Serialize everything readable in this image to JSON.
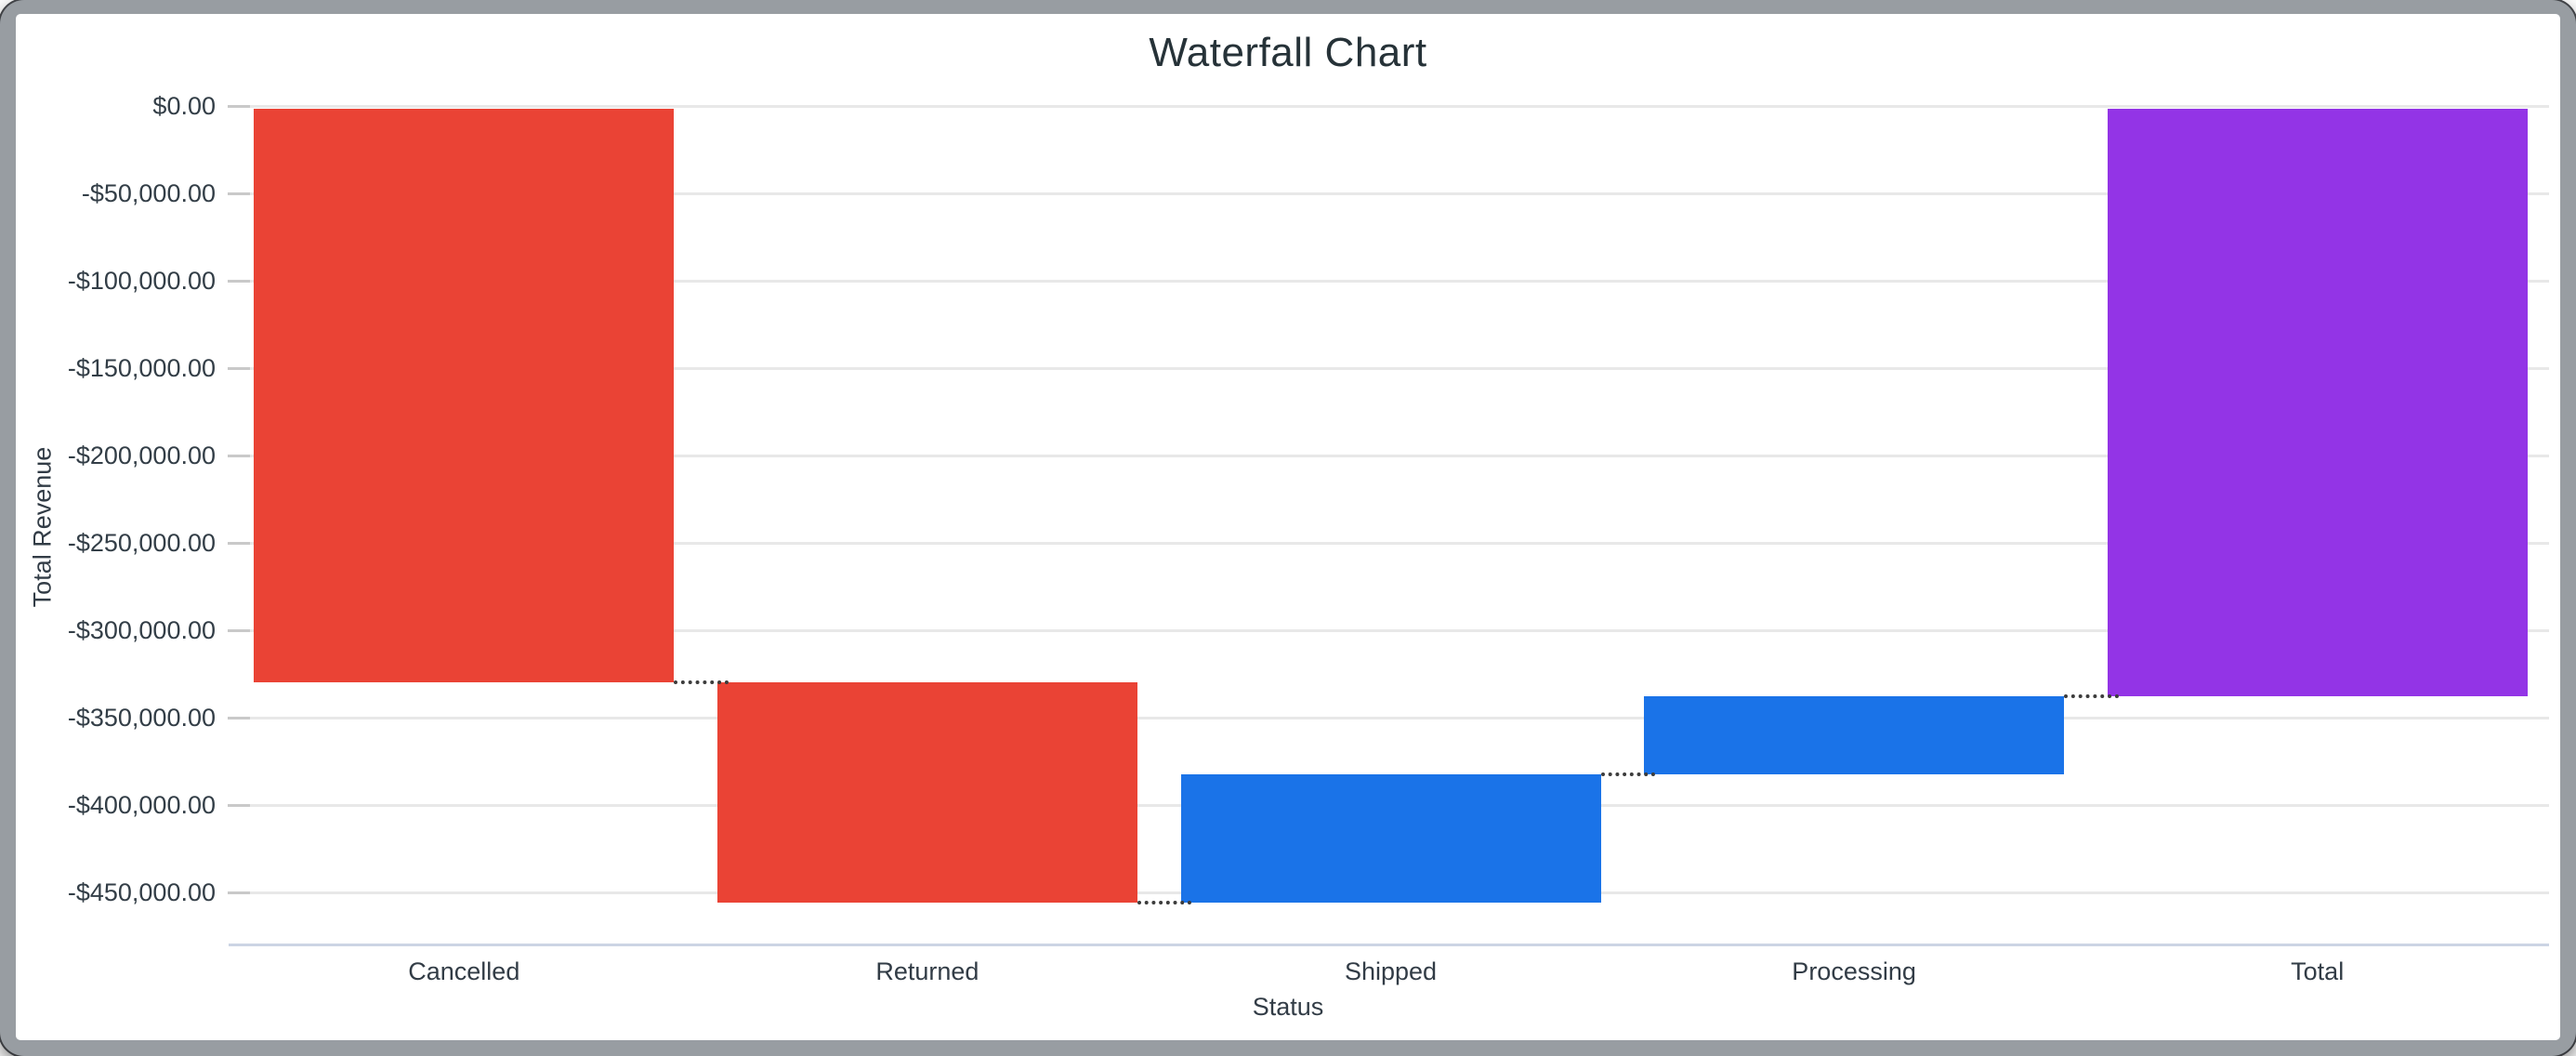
{
  "chart_data": {
    "type": "bar",
    "subtype": "waterfall",
    "title": "Waterfall Chart",
    "xlabel": "Status",
    "ylabel": "Total Revenue",
    "categories": [
      "Cancelled",
      "Returned",
      "Shipped",
      "Processing",
      "Total"
    ],
    "bars": [
      {
        "label": "Cancelled",
        "type": "decrease",
        "delta": -328000,
        "from": 0,
        "to": -328000
      },
      {
        "label": "Returned",
        "type": "decrease",
        "delta": -126000,
        "from": -328000,
        "to": -454000
      },
      {
        "label": "Shipped",
        "type": "increase",
        "delta": 73000,
        "from": -454000,
        "to": -381000
      },
      {
        "label": "Processing",
        "type": "increase",
        "delta": 45000,
        "from": -381000,
        "to": -336000
      },
      {
        "label": "Total",
        "type": "total",
        "delta": -336000,
        "from": 0,
        "to": -336000
      }
    ],
    "y_ticks": [
      {
        "label": "$0.00",
        "value": 0
      },
      {
        "label": "-$50,000.00",
        "value": -50000
      },
      {
        "label": "-$100,000.00",
        "value": -100000
      },
      {
        "label": "-$150,000.00",
        "value": -150000
      },
      {
        "label": "-$200,000.00",
        "value": -200000
      },
      {
        "label": "-$250,000.00",
        "value": -250000
      },
      {
        "label": "-$300,000.00",
        "value": -300000
      },
      {
        "label": "-$350,000.00",
        "value": -350000
      },
      {
        "label": "-$400,000.00",
        "value": -400000
      },
      {
        "label": "-$450,000.00",
        "value": -450000
      }
    ],
    "ylim": [
      -478000,
      0
    ],
    "grid": true,
    "legend": false,
    "colors": {
      "decrease": "#EA4335",
      "increase": "#1A73E8",
      "total": "#9334E6"
    }
  }
}
